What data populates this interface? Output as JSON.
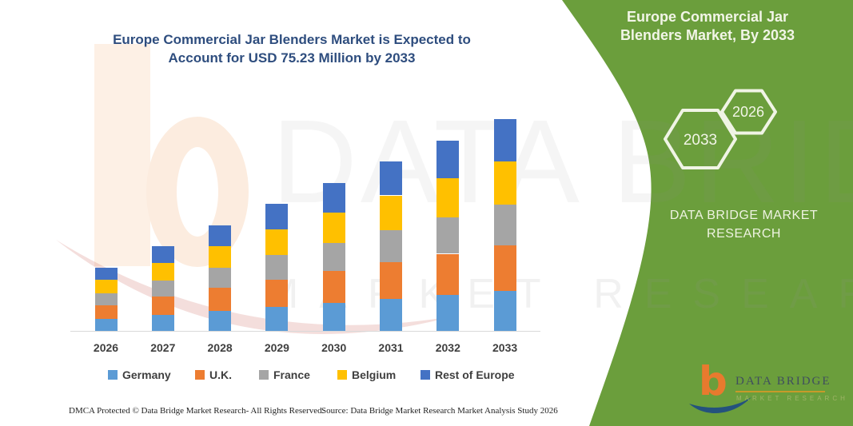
{
  "header": {
    "title_line1": "Europe Commercial Jar Blenders Market is Expected to",
    "title_line2": "Account for USD 75.23 Million by 2033"
  },
  "side_panel": {
    "bg_color": "#6b9e3c",
    "title_line1": "Europe Commercial Jar",
    "title_line2": "Blenders Market, By 2033",
    "hexagons": [
      {
        "label": "2033"
      },
      {
        "label": "2026"
      }
    ],
    "brand_line1": "DATA BRIDGE MARKET",
    "brand_line2": "RESEARCH"
  },
  "logo": {
    "letter": "b",
    "name_line": "DATA BRIDGE",
    "sub_line": "MARKET RESEARCH"
  },
  "watermark": {
    "row1": "DATA BRIDGE",
    "row2": "MARKET RESEARCH"
  },
  "footer": {
    "left": "DMCA Protected © Data Bridge Market Research-  All Rights Reserved.",
    "source": "Source: Data Bridge Market Research  Market Analysis Study 2026"
  },
  "chart_data": {
    "type": "bar",
    "stacked": true,
    "unit": "USD Million",
    "title": "Europe Commercial Jar Blenders Market is Expected to Account for USD 75.23 Million by 2033",
    "categories": [
      "2026",
      "2027",
      "2028",
      "2029",
      "2030",
      "2031",
      "2032",
      "2033"
    ],
    "series": [
      {
        "name": "Germany",
        "color": "#5b9bd5",
        "values": [
          4.29,
          5.72,
          7.15,
          8.58,
          10.01,
          11.44,
          12.86,
          14.3
        ]
      },
      {
        "name": "U.K.",
        "color": "#ed7d31",
        "values": [
          4.86,
          6.48,
          8.09,
          9.71,
          11.32,
          12.94,
          14.56,
          16.17
        ]
      },
      {
        "name": "France",
        "color": "#a5a5a5",
        "values": [
          4.29,
          5.72,
          7.15,
          8.58,
          10.01,
          11.44,
          12.86,
          14.29
        ]
      },
      {
        "name": "Belgium",
        "color": "#ffc000",
        "values": [
          4.63,
          6.17,
          7.72,
          9.26,
          10.8,
          12.34,
          13.88,
          15.42
        ]
      },
      {
        "name": "Rest of Europe",
        "color": "#4472c4",
        "values": [
          4.52,
          6.02,
          7.53,
          9.03,
          10.53,
          12.04,
          13.54,
          15.05
        ]
      }
    ],
    "totals_estimated": [
      22.59,
      30.11,
      37.64,
      45.16,
      52.67,
      60.2,
      67.7,
      75.23
    ],
    "ylim": [
      0,
      80
    ],
    "grid": false,
    "legend_position": "bottom",
    "values_note": "Per-country values estimated from stacked bar heights; 2033 total stated as USD 75.23 Million"
  }
}
